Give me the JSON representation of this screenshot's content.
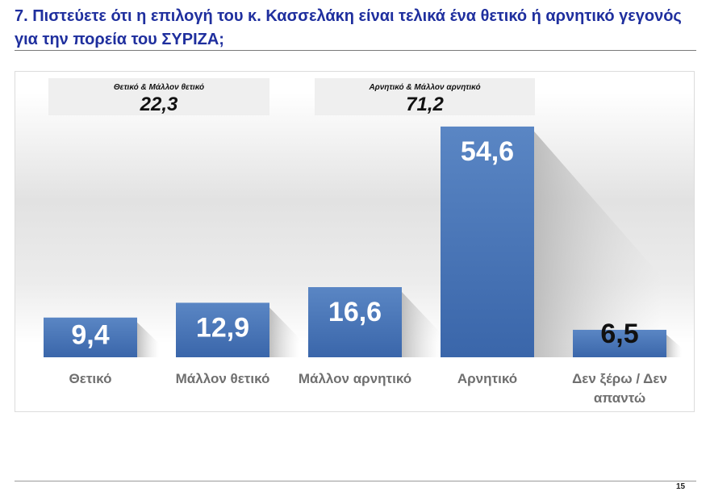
{
  "page": {
    "title": "7. Πιστεύετε ότι η επιλογή του κ. Κασσελάκη είναι τελικά ένα θετικό ή αρνητικό γεγονός για την πορεία του ΣΥΡΙΖΑ;",
    "page_number": "15"
  },
  "summaries": [
    {
      "label": "Θετικό & Μάλλον θετικό",
      "value": "22,3"
    },
    {
      "label": "Αρνητικό & Μάλλον αρνητικό",
      "value": "71,2"
    }
  ],
  "colors": {
    "bar_top": "#5a86c4",
    "bar_bottom": "#3a66aa",
    "title": "#1f2f9e",
    "category_text": "#6f6f6f"
  },
  "chart_data": {
    "type": "bar",
    "title": "",
    "xlabel": "",
    "ylabel": "",
    "ylim": [
      0,
      60
    ],
    "categories": [
      "Θετικό",
      "Μάλλον θετικό",
      "Μάλλον αρνητικό",
      "Αρνητικό",
      "Δεν ξέρω / Δεν απαντώ"
    ],
    "values": [
      9.4,
      12.9,
      16.6,
      54.6,
      6.5
    ],
    "labels": [
      "9,4",
      "12,9",
      "16,6",
      "54,6",
      "6,5"
    ],
    "label_colors": [
      "#ffffff",
      "#ffffff",
      "#ffffff",
      "#ffffff",
      "#111111"
    ]
  }
}
